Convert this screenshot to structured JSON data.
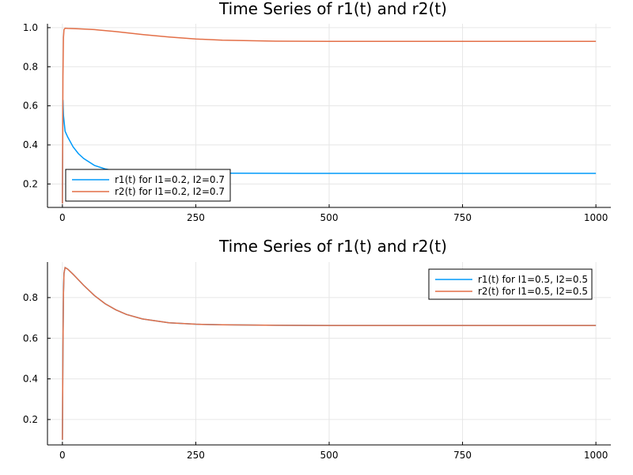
{
  "chart_data": [
    {
      "type": "line",
      "title": "Time Series of r1(t) and r2(t)",
      "xlabel": "",
      "ylabel": "",
      "xlim": [
        -28,
        1028
      ],
      "ylim": [
        0.08,
        1.02
      ],
      "xticks": [
        0,
        250,
        500,
        750,
        1000
      ],
      "yticks": [
        0.2,
        0.4,
        0.6,
        0.8,
        1.0
      ],
      "ytick_labels": [
        "0.2",
        "0.4",
        "0.6",
        "0.8",
        "1.0"
      ],
      "grid": true,
      "legend_position": "bottom-left",
      "series": [
        {
          "name": "r1(t) for I1=0.2, I2=0.7",
          "color": "#009AFA",
          "x": [
            0,
            1,
            2,
            5,
            10,
            20,
            30,
            40,
            60,
            80,
            100,
            120,
            150,
            200,
            250,
            300,
            500,
            750,
            1000
          ],
          "y": [
            0.1,
            0.63,
            0.55,
            0.47,
            0.44,
            0.39,
            0.355,
            0.33,
            0.295,
            0.277,
            0.267,
            0.261,
            0.257,
            0.255,
            0.255,
            0.255,
            0.254,
            0.254,
            0.254
          ]
        },
        {
          "name": "r2(t) for I1=0.2, I2=0.7",
          "color": "#E36F47",
          "x": [
            0,
            1,
            2,
            3,
            5,
            10,
            30,
            60,
            100,
            150,
            200,
            250,
            300,
            400,
            500,
            750,
            1000
          ],
          "y": [
            0.1,
            0.75,
            0.95,
            0.99,
            0.997,
            0.996,
            0.994,
            0.99,
            0.98,
            0.965,
            0.952,
            0.942,
            0.936,
            0.931,
            0.93,
            0.93,
            0.93
          ]
        }
      ]
    },
    {
      "type": "line",
      "title": "Time Series of r1(t) and r2(t)",
      "xlabel": "",
      "ylabel": "",
      "xlim": [
        -28,
        1028
      ],
      "ylim": [
        0.075,
        0.975
      ],
      "xticks": [
        0,
        250,
        500,
        750,
        1000
      ],
      "yticks": [
        0.2,
        0.4,
        0.6,
        0.8
      ],
      "ytick_labels": [
        "0.2",
        "0.4",
        "0.6",
        "0.8"
      ],
      "grid": true,
      "legend_position": "top-right",
      "series": [
        {
          "name": "r1(t) for I1=0.5, I2=0.5",
          "color": "#009AFA",
          "x": [
            0,
            1,
            2,
            3,
            5,
            10,
            20,
            40,
            60,
            80,
            100,
            120,
            150,
            200,
            250,
            300,
            400,
            500,
            750,
            1000
          ],
          "y": [
            0.1,
            0.55,
            0.82,
            0.92,
            0.948,
            0.94,
            0.915,
            0.86,
            0.81,
            0.77,
            0.74,
            0.717,
            0.695,
            0.676,
            0.669,
            0.666,
            0.664,
            0.663,
            0.663,
            0.663
          ]
        },
        {
          "name": "r2(t) for I1=0.5, I2=0.5",
          "color": "#E36F47",
          "x": [
            0,
            1,
            2,
            3,
            5,
            10,
            20,
            40,
            60,
            80,
            100,
            120,
            150,
            200,
            250,
            300,
            400,
            500,
            750,
            1000
          ],
          "y": [
            0.1,
            0.55,
            0.82,
            0.92,
            0.948,
            0.94,
            0.915,
            0.86,
            0.81,
            0.77,
            0.74,
            0.717,
            0.695,
            0.676,
            0.669,
            0.666,
            0.664,
            0.663,
            0.663,
            0.663
          ]
        }
      ]
    }
  ]
}
